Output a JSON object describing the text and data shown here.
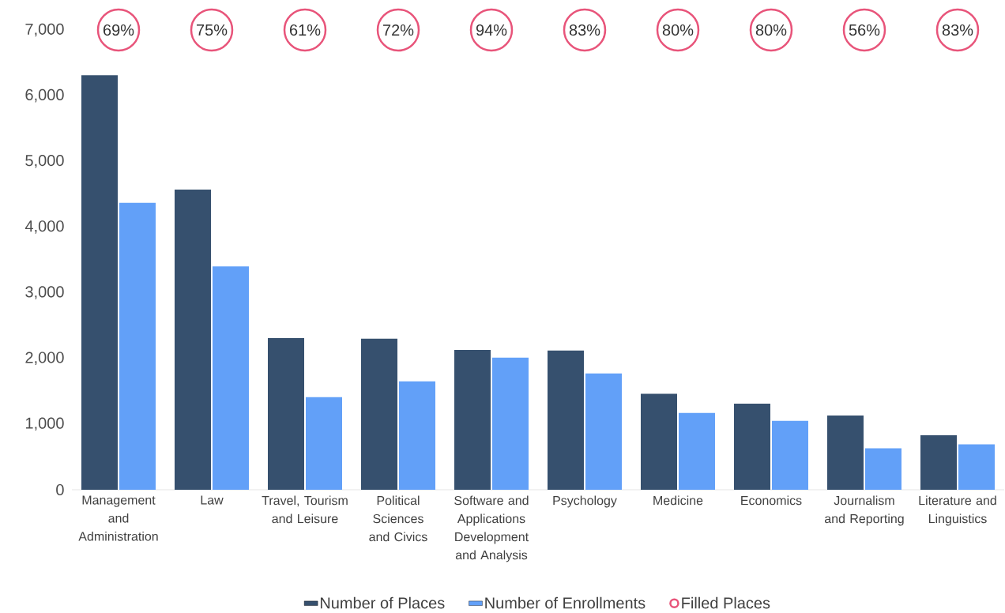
{
  "chart_data": {
    "type": "bar",
    "categories": [
      "Management and Administration",
      "Law",
      "Travel, Tourism and Leisure",
      "Political Sciences and Civics",
      "Software and Applications Development and Analysis",
      "Psychology",
      "Medicine",
      "Economics",
      "Journalism and Reporting",
      "Literature and Linguistics"
    ],
    "series": [
      {
        "name": "Number of Places",
        "color": "#36506e",
        "values": [
          6310,
          4570,
          2310,
          2300,
          2130,
          2120,
          1460,
          1310,
          1130,
          830
        ]
      },
      {
        "name": "Number of Enrollments",
        "color": "#62a0f8",
        "values": [
          4370,
          3400,
          1410,
          1650,
          2010,
          1770,
          1170,
          1050,
          630,
          690
        ]
      },
      {
        "name": "Filled Places",
        "type": "scatter",
        "color": "#e8547a",
        "values": [
          7000,
          7000,
          7000,
          7000,
          7000,
          7000,
          7000,
          7000,
          7000,
          7000
        ]
      }
    ],
    "annotations": [
      {
        "text": "69%",
        "x": "Management and Administration",
        "y": 7000
      },
      {
        "text": "75%",
        "x": "Law",
        "y": 7000
      },
      {
        "text": "61%",
        "x": "Travel, Tourism and Leisure",
        "y": 7000
      },
      {
        "text": "72%",
        "x": "Political Sciences and Civics",
        "y": 7000
      },
      {
        "text": "94%",
        "x": "Software and Applications Development and Analysis",
        "y": 7000
      },
      {
        "text": "83%",
        "x": "Psychology",
        "y": 7000
      },
      {
        "text": "80%",
        "x": "Medicine",
        "y": 7000
      },
      {
        "text": "80%",
        "x": "Economics",
        "y": 7000
      },
      {
        "text": "56%",
        "x": "Journalism and Reporting",
        "y": 7000
      },
      {
        "text": "83%",
        "x": "Literature and Linguistics",
        "y": 7000
      }
    ],
    "marker": "circle",
    "ylim": [
      0,
      7000
    ],
    "yticks": [
      0,
      {
        "value": 1000,
        "label": "1,000"
      },
      {
        "value": 2000,
        "label": "2,000"
      },
      {
        "value": 3000,
        "label": "3,000"
      },
      {
        "value": 4000,
        "label": "4,000"
      },
      {
        "value": 5000,
        "label": "5,000"
      },
      {
        "value": 6000,
        "label": "6,000"
      },
      {
        "value": 7000,
        "label": "7,000"
      }
    ],
    "legend": "bottom"
  }
}
